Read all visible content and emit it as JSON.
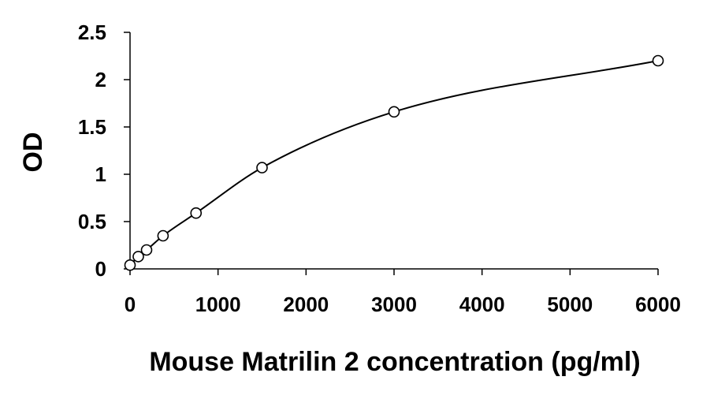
{
  "chart_data": {
    "type": "scatter",
    "title": "",
    "xlabel": "Mouse Matrilin 2 concentration (pg/ml)",
    "ylabel": "OD",
    "xlim": [
      0,
      6000
    ],
    "ylim": [
      0,
      2.5
    ],
    "xticks": [
      "0",
      "1000",
      "2000",
      "3000",
      "4000",
      "5000",
      "6000"
    ],
    "yticks": [
      "0",
      "0.5",
      "1",
      "1.5",
      "2",
      "2.5"
    ],
    "grid": false,
    "legend": "none",
    "series": [
      {
        "values": [
          {
            "x": 0,
            "y": 0.04
          },
          {
            "x": 94,
            "y": 0.13
          },
          {
            "x": 188,
            "y": 0.2
          },
          {
            "x": 375,
            "y": 0.35
          },
          {
            "x": 750,
            "y": 0.59
          },
          {
            "x": 1500,
            "y": 1.07
          },
          {
            "x": 3000,
            "y": 1.66
          },
          {
            "x": 6000,
            "y": 2.2
          }
        ],
        "marker": "open-circle",
        "color": "#000000",
        "fit_line": "smooth curve"
      }
    ]
  }
}
